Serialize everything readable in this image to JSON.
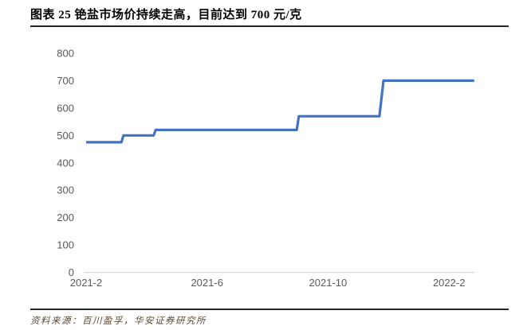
{
  "header": {
    "title": "图表 25  铯盐市场价持续走高，目前达到 700 元/克"
  },
  "footer": {
    "source": "资料来源：百川盈孚，华安证券研究所"
  },
  "chart_data": {
    "type": "line",
    "title": "铯盐市场价持续走高，目前达到 700 元/克",
    "xlabel": "",
    "ylabel": "",
    "ylim": [
      0,
      800
    ],
    "grid": "off",
    "legend": "none",
    "line_style": "step",
    "line_color": "#4472C4",
    "axis_color": "#D9D9D9",
    "tick_label_color": "#595959",
    "y_ticks": [
      0,
      100,
      200,
      300,
      400,
      500,
      600,
      700,
      800
    ],
    "x_ticks": [
      {
        "label": "2021-2",
        "month": "2021-02"
      },
      {
        "label": "2021-6",
        "month": "2021-06"
      },
      {
        "label": "2021-10",
        "month": "2021-10"
      },
      {
        "label": "2022-2",
        "month": "2022-02"
      }
    ],
    "points": [
      {
        "date": "2021-02-01",
        "value": 475
      },
      {
        "date": "2021-03-06",
        "value": 475
      },
      {
        "date": "2021-03-08",
        "value": 500
      },
      {
        "date": "2021-04-08",
        "value": 500
      },
      {
        "date": "2021-04-10",
        "value": 520
      },
      {
        "date": "2021-08-30",
        "value": 520
      },
      {
        "date": "2021-09-02",
        "value": 570
      },
      {
        "date": "2021-11-22",
        "value": 570
      },
      {
        "date": "2021-11-26",
        "value": 700
      },
      {
        "date": "2022-02-26",
        "value": 700
      }
    ]
  }
}
